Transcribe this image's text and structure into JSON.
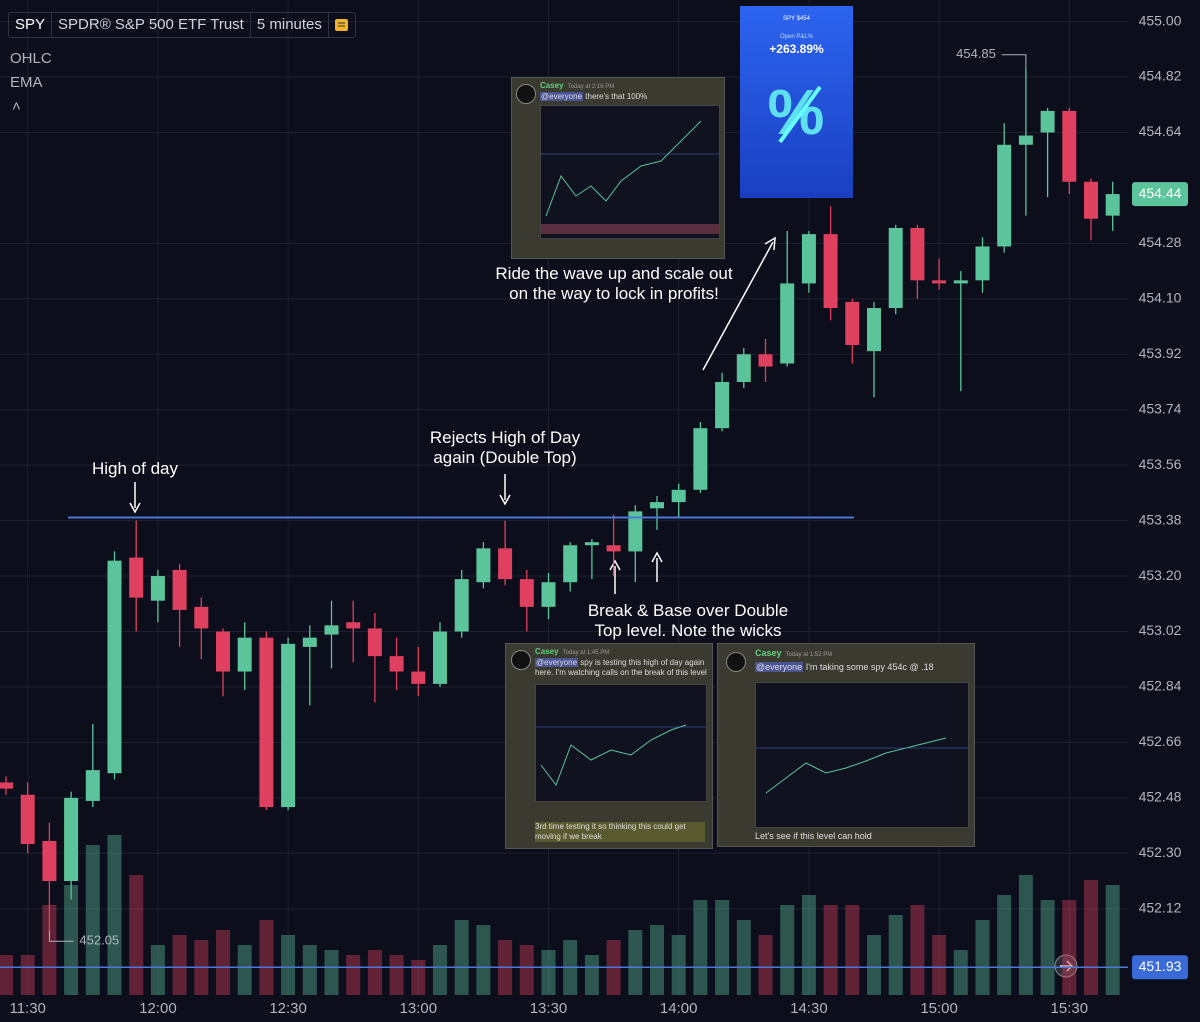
{
  "chart_data": {
    "type": "candlestick",
    "symbol": "SPY",
    "name": "SPDR® S&P 500 ETF Trust",
    "interval": "5 minutes",
    "indicators": [
      "OHLC",
      "EMA"
    ],
    "categories": [
      null,
      "11:30",
      null,
      null,
      null,
      null,
      null,
      "12:00",
      null,
      null,
      null,
      null,
      null,
      "12:30",
      null,
      null,
      null,
      null,
      null,
      "13:00",
      null,
      null,
      null,
      null,
      null,
      "13:30",
      null,
      null,
      null,
      null,
      null,
      "14:00",
      null,
      null,
      null,
      null,
      null,
      "14:30",
      null,
      null,
      null,
      null,
      null,
      "15:00",
      null,
      null,
      null,
      null,
      null,
      "15:30",
      null,
      null
    ],
    "open": [
      452.53,
      452.49,
      452.34,
      452.21,
      452.47,
      452.56,
      453.26,
      453.12,
      453.22,
      453.1,
      453.02,
      452.89,
      453.0,
      452.45,
      452.97,
      453.01,
      453.05,
      453.03,
      452.94,
      452.89,
      452.85,
      453.02,
      453.18,
      453.29,
      453.19,
      453.1,
      453.18,
      453.3,
      453.3,
      453.28,
      453.42,
      453.44,
      453.48,
      453.68,
      453.83,
      453.92,
      453.89,
      454.15,
      454.31,
      454.09,
      453.93,
      454.07,
      454.33,
      454.16,
      454.15,
      454.16,
      454.27,
      454.6,
      454.64,
      454.71,
      454.48,
      454.37
    ],
    "high": [
      452.55,
      452.53,
      452.4,
      452.5,
      452.72,
      453.28,
      453.38,
      453.22,
      453.24,
      453.13,
      453.03,
      453.05,
      453.02,
      453.0,
      453.04,
      453.12,
      453.12,
      453.08,
      453.0,
      452.97,
      453.05,
      453.22,
      453.31,
      453.38,
      453.22,
      453.21,
      453.31,
      453.32,
      453.4,
      453.43,
      453.46,
      453.5,
      453.7,
      453.86,
      453.94,
      453.97,
      454.32,
      454.32,
      454.4,
      454.1,
      454.09,
      454.34,
      454.34,
      454.23,
      454.19,
      454.3,
      454.67,
      454.85,
      454.72,
      454.72,
      454.49,
      454.48
    ],
    "low": [
      452.49,
      452.3,
      452.05,
      452.15,
      452.45,
      452.54,
      453.02,
      453.05,
      452.97,
      452.93,
      452.81,
      452.83,
      452.44,
      452.44,
      452.78,
      452.9,
      452.92,
      452.79,
      452.83,
      452.81,
      452.84,
      453.0,
      453.16,
      453.17,
      453.02,
      453.06,
      453.15,
      453.19,
      453.2,
      453.18,
      453.35,
      453.39,
      453.47,
      453.67,
      453.81,
      453.83,
      453.88,
      454.12,
      454.03,
      453.89,
      453.78,
      454.05,
      454.1,
      454.13,
      453.8,
      454.12,
      454.25,
      454.37,
      454.43,
      454.44,
      454.29,
      454.32
    ],
    "close": [
      452.51,
      452.33,
      452.21,
      452.48,
      452.57,
      453.25,
      453.13,
      453.2,
      453.09,
      453.03,
      452.89,
      453.0,
      452.45,
      452.98,
      453.0,
      453.04,
      453.03,
      452.94,
      452.89,
      452.85,
      453.02,
      453.19,
      453.29,
      453.19,
      453.1,
      453.18,
      453.3,
      453.31,
      453.28,
      453.41,
      453.44,
      453.48,
      453.68,
      453.83,
      453.92,
      453.88,
      454.15,
      454.31,
      454.07,
      453.95,
      454.07,
      454.33,
      454.16,
      454.15,
      454.16,
      454.27,
      454.6,
      454.63,
      454.71,
      454.48,
      454.36,
      454.44
    ],
    "volume": [
      40,
      40,
      90,
      110,
      150,
      160,
      120,
      50,
      60,
      55,
      65,
      50,
      75,
      60,
      50,
      45,
      40,
      45,
      40,
      35,
      50,
      75,
      70,
      55,
      50,
      45,
      55,
      40,
      55,
      65,
      70,
      60,
      95,
      95,
      75,
      60,
      90,
      100,
      90,
      90,
      60,
      80,
      90,
      60,
      45,
      75,
      100,
      120,
      95,
      95,
      115,
      110
    ],
    "up_color": "#5cc49a",
    "down_color": "#e0405f",
    "ylim": [
      451.84,
      455.07
    ],
    "yticks": [
      {
        "value": 455,
        "label": "455.00"
      },
      454.82,
      454.64,
      454.28,
      {
        "value": 454.1,
        "label": "454.10"
      },
      453.92,
      453.74,
      453.56,
      453.38,
      {
        "value": 453.2,
        "label": "453.20"
      },
      453.02,
      452.84,
      452.66,
      452.48,
      {
        "value": 452.3,
        "label": "452.30"
      },
      452.12
    ],
    "grid": true,
    "high_of_day_line": 453.39,
    "last_price": 454.44,
    "price_line": 451.93,
    "low_marker": 452.05,
    "high_marker": 454.85,
    "annotations": [
      "High of day",
      "Rejects High of Day\nagain (Double Top)",
      "Ride the wave up and scale out\non the way to lock in profits!",
      "Break & Base over Double\nTop level. Note the wicks"
    ],
    "screenshots": [
      {
        "author": "Casey",
        "time": "Today at 2:16 PM",
        "mention": "@everyone",
        "text": "there's that 100%"
      },
      {
        "author": "Casey",
        "time": "Today at 1:45 PM",
        "mention": "@everyone",
        "text": "spy is testing this high of day again here. I'm watching calls on the break of this level",
        "reply": "3rd time testing it so thinking this could get moving if we break"
      },
      {
        "author": "Casey",
        "time": "Today at 1:52 PM",
        "mention": "@everyone",
        "text": "I'm taking some spy 454c @ .18",
        "reply": "Let's see if this level can hold"
      }
    ],
    "card": {
      "ticker": "SPY $454",
      "label": "Open P&L%",
      "value": "+263.89%"
    }
  }
}
